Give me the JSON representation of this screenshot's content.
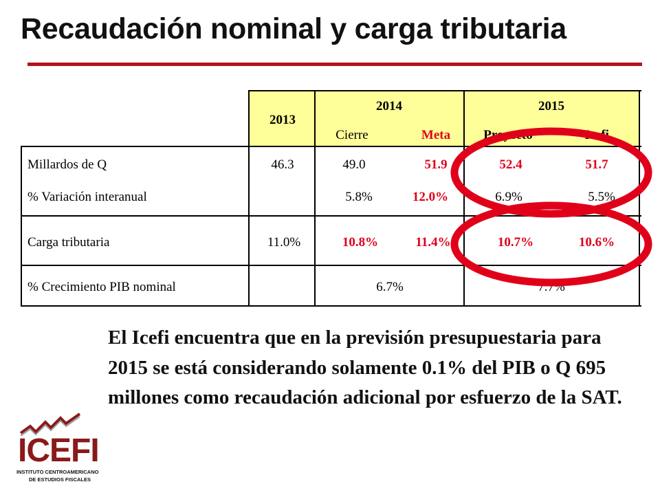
{
  "title": "Recaudación nominal y carga tributaria",
  "table": {
    "header": {
      "y2013": "2013",
      "y2014": "2014",
      "y2015": "2015",
      "cierre": "Cierre",
      "meta": "Meta",
      "proyecto": "Proyecto",
      "icefi": "Icefi"
    },
    "rows": [
      {
        "label": "Millardos de Q",
        "v2013": "46.3",
        "cierre": "49.0",
        "meta": "51.9",
        "proyecto": "52.4",
        "icefi": "51.7"
      },
      {
        "label": "% Variación interanual",
        "cierre": "5.8%",
        "meta": "12.0%",
        "proyecto": "6.9%",
        "icefi": "5.5%"
      },
      {
        "label": "Carga tributaria",
        "v2013": "11.0%",
        "cierre": "10.8%",
        "meta": "11.4%",
        "proyecto": "10.7%",
        "icefi": "10.6%"
      },
      {
        "label": "% Crecimiento PIB nominal",
        "v2014": "6.7%",
        "v2015": "7.7%"
      }
    ]
  },
  "paragraph": "El Icefi encuentra que en la previsión presupuestaria para 2015 se está considerando solamente 0.1% del PIB o Q 695 millones como recaudación adicional por esfuerzo de la SAT.",
  "logo": {
    "name": "ICEFI",
    "subtitle_line1": "INSTITUTO CENTROAMERICANO",
    "subtitle_line2": "DE ESTUDIOS FISCALES"
  },
  "colors": {
    "accent_red": "#e0001a",
    "title_rule": "#b5121b",
    "header_fill": "#ffff99",
    "logo": "#8a1a1a"
  }
}
